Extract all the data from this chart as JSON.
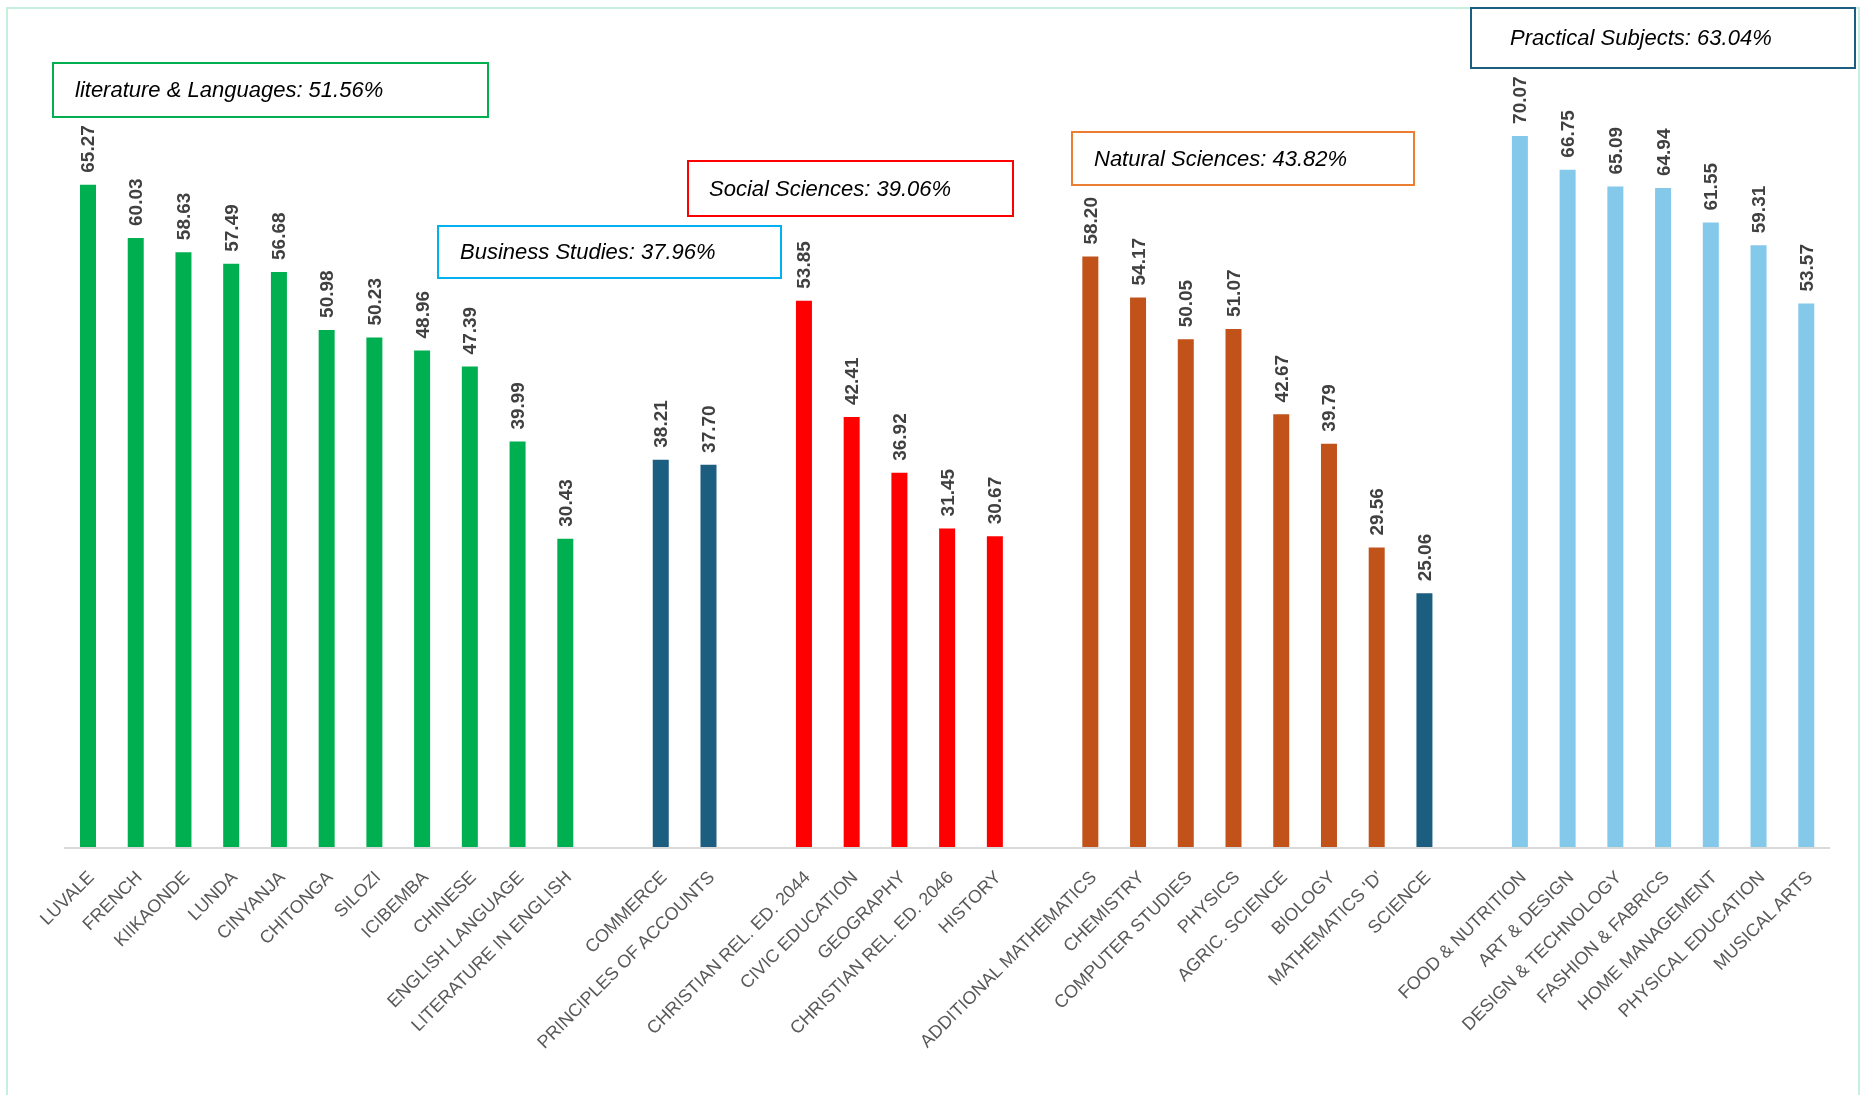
{
  "chart_data": {
    "type": "bar",
    "categories": [
      "LUVALE",
      "FRENCH",
      "KIIKAONDE",
      "LUNDA",
      "CINYANJA",
      "CHITONGA",
      "SILOZI",
      "ICIBEMBA",
      "CHINESE",
      "ENGLISH LANGUAGE",
      "LITERATURE IN ENGLISH",
      null,
      "COMMERCE",
      "PRINCIPLES OF ACCOUNTS",
      null,
      "CHRISTIAN REL. ED. 2044",
      "CIVIC EDUCATION",
      "GEOGRAPHY",
      "CHRISTIAN REL. ED. 2046",
      "HISTORY",
      null,
      "ADDITIONAL MATHEMATICS",
      "CHEMISTRY",
      "COMPUTER STUDIES",
      "PHYSICS",
      "AGRIC. SCIENCE",
      "BIOLOGY",
      "MATHEMATICS 'D'",
      "SCIENCE",
      null,
      "FOOD & NUTRITION",
      "ART & DESIGN",
      "DESIGN & TECHNOLOGY",
      "FASHION & FABRICS",
      "HOME MANAGEMENT",
      "PHYSICAL EDUCATION",
      "MUSICAL ARTS"
    ],
    "values": [
      65.27,
      60.03,
      58.63,
      57.49,
      56.68,
      50.98,
      50.23,
      48.96,
      47.39,
      39.99,
      30.43,
      null,
      38.21,
      37.7,
      null,
      53.85,
      42.41,
      36.92,
      31.45,
      30.67,
      null,
      58.2,
      54.17,
      50.05,
      51.07,
      42.67,
      39.79,
      29.56,
      25.06,
      null,
      70.07,
      66.75,
      65.09,
      64.94,
      61.55,
      59.31,
      53.57
    ],
    "value_labels": [
      "65.27",
      "60.03",
      "58.63",
      "57.49",
      "56.68",
      "50.98",
      "50.23",
      "48.96",
      "47.39",
      "39.99",
      "30.43",
      null,
      "38.21",
      "37.70",
      null,
      "53.85",
      "42.41",
      "36.92",
      "31.45",
      "30.67",
      null,
      "58.20",
      "54.17",
      "50.05",
      "51.07",
      "42.67",
      "39.79",
      "29.56",
      "25.06",
      null,
      "70.07",
      "66.75",
      "65.09",
      "64.94",
      "61.55",
      "59.31",
      "53.57"
    ],
    "colors": [
      "#00b050",
      "#00b050",
      "#00b050",
      "#00b050",
      "#00b050",
      "#00b050",
      "#00b050",
      "#00b050",
      "#00b050",
      "#00b050",
      "#00b050",
      null,
      "#1b5e80",
      "#1b5e80",
      null,
      "#ff0000",
      "#ff0000",
      "#ff0000",
      "#ff0000",
      "#ff0000",
      null,
      "#c1521a",
      "#c1521a",
      "#c1521a",
      "#c1521a",
      "#c1521a",
      "#c1521a",
      "#c1521a",
      "#1b5e80",
      null,
      "#84c9ea",
      "#84c9ea",
      "#84c9ea",
      "#84c9ea",
      "#84c9ea",
      "#84c9ea",
      "#84c9ea"
    ],
    "annotations": [
      "literature & Languages: 51.56%",
      "Business Studies: 37.96%",
      "Social Sciences: 39.06%",
      "Natural Sciences: 43.82%",
      "Practical Subjects: 63.04%"
    ],
    "grid": false,
    "legend": false
  }
}
